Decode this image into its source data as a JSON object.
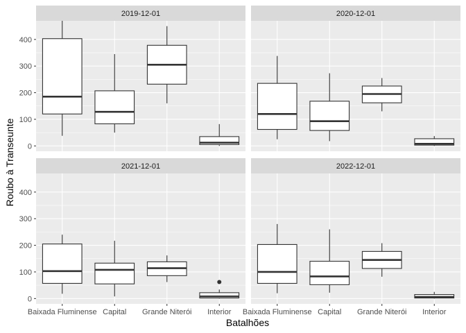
{
  "chart_data": {
    "type": "box",
    "facet_by": "date",
    "xlabel": "Batalhões",
    "ylabel": "Roubo à Transeunte",
    "ylim": [
      -20,
      470
    ],
    "y_ticks": [
      0,
      100,
      200,
      300,
      400
    ],
    "categories": [
      "Baixada Fluminense",
      "Capital",
      "Grande Niterói",
      "Interior"
    ],
    "grid": true,
    "panels": [
      {
        "title": "2019-12-01",
        "boxes": [
          {
            "category": "Baixada Fluminense",
            "whisker_low": 38,
            "q1": 120,
            "median": 185,
            "q3": 403,
            "whisker_high": 470,
            "outliers": []
          },
          {
            "category": "Capital",
            "whisker_low": 50,
            "q1": 83,
            "median": 128,
            "q3": 207,
            "whisker_high": 345,
            "outliers": []
          },
          {
            "category": "Grande Niterói",
            "whisker_low": 160,
            "q1": 232,
            "median": 305,
            "q3": 378,
            "whisker_high": 450,
            "outliers": []
          },
          {
            "category": "Interior",
            "whisker_low": 0,
            "q1": 5,
            "median": 12,
            "q3": 35,
            "whisker_high": 82,
            "outliers": []
          }
        ]
      },
      {
        "title": "2020-12-01",
        "boxes": [
          {
            "category": "Baixada Fluminense",
            "whisker_low": 25,
            "q1": 62,
            "median": 120,
            "q3": 235,
            "whisker_high": 338,
            "outliers": []
          },
          {
            "category": "Capital",
            "whisker_low": 18,
            "q1": 58,
            "median": 93,
            "q3": 168,
            "whisker_high": 273,
            "outliers": []
          },
          {
            "category": "Grande Niterói",
            "whisker_low": 130,
            "q1": 162,
            "median": 195,
            "q3": 225,
            "whisker_high": 255,
            "outliers": []
          },
          {
            "category": "Interior",
            "whisker_low": 0,
            "q1": 3,
            "median": 8,
            "q3": 27,
            "whisker_high": 37,
            "outliers": []
          }
        ]
      },
      {
        "title": "2021-12-01",
        "boxes": [
          {
            "category": "Baixada Fluminense",
            "whisker_low": 18,
            "q1": 57,
            "median": 103,
            "q3": 205,
            "whisker_high": 240,
            "outliers": []
          },
          {
            "category": "Capital",
            "whisker_low": 8,
            "q1": 55,
            "median": 108,
            "q3": 133,
            "whisker_high": 217,
            "outliers": []
          },
          {
            "category": "Grande Niterói",
            "whisker_low": 62,
            "q1": 86,
            "median": 114,
            "q3": 138,
            "whisker_high": 162,
            "outliers": []
          },
          {
            "category": "Interior",
            "whisker_low": 0,
            "q1": 2,
            "median": 8,
            "q3": 22,
            "whisker_high": 34,
            "outliers": [
              62
            ]
          }
        ]
      },
      {
        "title": "2022-12-01",
        "boxes": [
          {
            "category": "Baixada Fluminense",
            "whisker_low": 20,
            "q1": 57,
            "median": 100,
            "q3": 203,
            "whisker_high": 280,
            "outliers": []
          },
          {
            "category": "Capital",
            "whisker_low": 22,
            "q1": 52,
            "median": 83,
            "q3": 140,
            "whisker_high": 260,
            "outliers": []
          },
          {
            "category": "Grande Niterói",
            "whisker_low": 82,
            "q1": 113,
            "median": 145,
            "q3": 177,
            "whisker_high": 208,
            "outliers": []
          },
          {
            "category": "Interior",
            "whisker_low": 0,
            "q1": 2,
            "median": 6,
            "q3": 15,
            "whisker_high": 25,
            "outliers": []
          }
        ]
      }
    ]
  }
}
